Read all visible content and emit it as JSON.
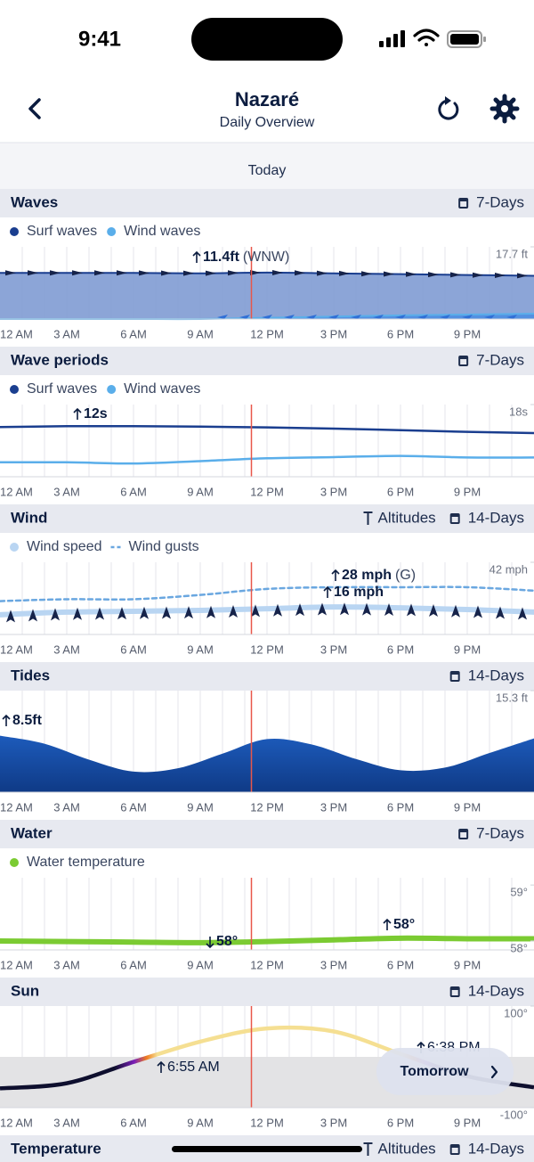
{
  "status_bar": {
    "time": "9:41"
  },
  "header": {
    "title": "Nazaré",
    "subtitle": "Daily Overview"
  },
  "day_label": "Today",
  "time_axis": {
    "ticks": [
      {
        "value": 0,
        "label": "12 AM"
      },
      {
        "value": 3,
        "label": "3 AM"
      },
      {
        "value": 6,
        "label": "6 AM"
      },
      {
        "value": 9,
        "label": "9 AM"
      },
      {
        "value": 12,
        "label": "12 PM"
      },
      {
        "value": 15,
        "label": "3 PM"
      },
      {
        "value": 18,
        "label": "6 PM"
      },
      {
        "value": 21,
        "label": "9 PM"
      }
    ]
  },
  "now_hour": 11.3,
  "sections": [
    {
      "title": "Waves",
      "range": "7-Days",
      "legend": true,
      "chart": {
        "type": "area",
        "x": [
          0,
          3,
          6,
          9,
          12,
          15,
          18,
          21,
          24
        ],
        "ylim": [
          0,
          17.7
        ],
        "yticks": [
          {
            "value": 17.7,
            "label": "17.7 ft"
          }
        ],
        "series": [
          {
            "name": "Surf waves",
            "color": "#1a3e8f",
            "fill": "#7f9bd3",
            "values": [
              11.3,
              11.3,
              11.3,
              11.2,
              11.4,
              11.2,
              11.0,
              10.8,
              10.6
            ]
          },
          {
            "name": "Wind waves",
            "color": "#5aaeea",
            "fill": "#4d8ee2",
            "values": [
              0,
              0,
              0,
              0,
              0.3,
              0.6,
              0.9,
              1.1,
              1.3
            ]
          }
        ],
        "annotations": [
          {
            "text": "11.4ft",
            "note": "(WNW)",
            "dir": "up",
            "bold": true
          }
        ]
      }
    },
    {
      "title": "Wave periods",
      "range": "7-Days",
      "legend": true,
      "chart": {
        "type": "line",
        "x": [
          0,
          3,
          6,
          9,
          12,
          15,
          18,
          21,
          24
        ],
        "ylim": [
          0,
          18
        ],
        "yticks": [
          {
            "value": 18,
            "label": "18s"
          }
        ],
        "series": [
          {
            "name": "Surf waves",
            "color": "#1a3e8f",
            "values": [
              12.4,
              12.6,
              12.6,
              12.5,
              12.3,
              12.0,
              11.6,
              11.2,
              10.9
            ]
          },
          {
            "name": "Wind waves",
            "color": "#5aaeea",
            "values": [
              3.6,
              3.6,
              3.3,
              3.9,
              4.6,
              4.9,
              5.2,
              4.8,
              4.8
            ]
          }
        ],
        "annotations": [
          {
            "text": "12s",
            "dir": "up",
            "bold": true
          }
        ]
      }
    },
    {
      "title": "Wind",
      "extra": "Altitudes",
      "range": "14-Days",
      "legend": true,
      "chart": {
        "type": "line",
        "x": [
          0,
          3,
          6,
          9,
          12,
          15,
          18,
          21,
          24
        ],
        "ylim": [
          0,
          42
        ],
        "yticks": [
          {
            "value": 42,
            "label": "42 mph"
          }
        ],
        "series": [
          {
            "name": "Wind speed",
            "color": "#b9d5f2",
            "thick": true,
            "values": [
              11.5,
              13,
              13.5,
              14,
              15,
              16,
              15.5,
              14.5,
              13
            ]
          },
          {
            "name": "Wind gusts",
            "color": "#6aa7e0",
            "dash": true,
            "values": [
              19.4,
              20.5,
              20.5,
              23,
              26.5,
              27.5,
              27.5,
              27.5,
              25.5
            ]
          }
        ],
        "annotations": [
          {
            "text": "28 mph",
            "note": "(G)",
            "dir": "up",
            "bold": true
          },
          {
            "text": "16 mph",
            "dir": "up",
            "bold": true
          }
        ]
      }
    },
    {
      "title": "Tides",
      "range": "14-Days",
      "legend": false,
      "chart": {
        "type": "area",
        "x": [
          0,
          2,
          4,
          6,
          8,
          10,
          12,
          14,
          16,
          18,
          20,
          22,
          24
        ],
        "ylim": [
          0,
          15.3
        ],
        "yticks": [
          {
            "value": 15.3,
            "label": "15.3 ft"
          }
        ],
        "series": [
          {
            "name": "Tide",
            "color": "#1a4fa8",
            "fill": "#1a4fa8",
            "values": [
              8.5,
              7.3,
              4.9,
              3.1,
              3.6,
              5.8,
              8.0,
              7.2,
              5.0,
              3.3,
              3.7,
              5.9,
              8.1
            ]
          }
        ],
        "annotations": [
          {
            "text": "8.5ft",
            "dir": "up",
            "bold": true
          }
        ]
      }
    },
    {
      "title": "Water",
      "range": "7-Days",
      "legend": true,
      "chart": {
        "type": "line",
        "x": [
          0,
          3,
          6,
          9,
          12,
          15,
          18,
          21,
          24
        ],
        "ylim": [
          57.84,
          59.13
        ],
        "yticks": [
          {
            "value": 59,
            "label": "59°"
          },
          {
            "value": 58,
            "label": "58°"
          }
        ],
        "series": [
          {
            "name": "Water temperature",
            "color": "#7bcb32",
            "thick": true,
            "values": [
              58.0,
              57.99,
              57.98,
              57.97,
              57.99,
              58.02,
              58.05,
              58.04,
              58.04
            ]
          }
        ],
        "annotations": [
          {
            "text": "58°",
            "dir": "down",
            "bold": true
          },
          {
            "text": "58°",
            "dir": "up",
            "bold": true
          }
        ]
      }
    },
    {
      "title": "Sun",
      "range": "14-Days",
      "legend": false,
      "chart": {
        "type": "elevation",
        "x": [
          0,
          3,
          6,
          9,
          12,
          15,
          18,
          21,
          24
        ],
        "ylim": [
          -100,
          100
        ],
        "yticks": [
          {
            "value": 100,
            "label": "100°"
          },
          {
            "value": -100,
            "label": "-100°"
          }
        ],
        "series": [
          {
            "name": "Sun elevation",
            "color": "#f5df92",
            "night_color": "#0e0f2e",
            "values": [
              -62,
              -52,
              -10,
              30,
              56,
              50,
              6,
              -38,
              -60
            ]
          }
        ],
        "annotations": [
          {
            "text": "6:55 AM",
            "dir": "up",
            "bold": false
          },
          {
            "text": "6:38 PM",
            "dir": "up",
            "bold": false
          }
        ]
      }
    },
    {
      "title": "Temperature",
      "extra": "Altitudes",
      "range": "14-Days",
      "legend": false
    }
  ],
  "button": "Tomorrow"
}
